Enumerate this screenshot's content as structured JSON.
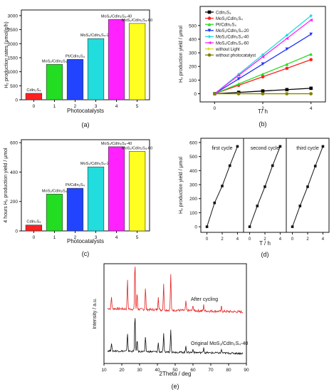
{
  "figure": {
    "panel_labels": [
      "(a)",
      "(b)",
      "(c)",
      "(d)",
      "(e)"
    ]
  },
  "chart_data": [
    {
      "id": "a",
      "type": "bar",
      "xlabel": "Photocatalysts",
      "ylabel": "H₂ production rates (μmol/g/h)",
      "categories": [
        "0",
        "1",
        "2",
        "3",
        "4",
        "5"
      ],
      "values": [
        230,
        1260,
        1440,
        2180,
        2860,
        2720
      ],
      "bar_labels": [
        "CdIn₂S₄",
        "MoS₂/CdIn₂S₄",
        "Pt/CdIn₂S₄",
        "MoS₂/CdIn₂S₄-20",
        "MoS₂/CdIn₂S₄-40",
        "MoS₂/CdIn₂S₄-60"
      ],
      "colors": [
        "#ff2020",
        "#22dd22",
        "#2244ff",
        "#22dddd",
        "#ff22ff",
        "#ffff22"
      ],
      "yticks": [
        0,
        500,
        1000,
        1500,
        2000,
        2500,
        3000
      ],
      "ylim": [
        0,
        3200
      ],
      "xlim": [
        -0.6,
        5.6
      ]
    },
    {
      "id": "b",
      "type": "line",
      "xlabel": "T/ h",
      "ylabel": "H₂ production yield / μmol",
      "xticks": [
        0,
        2,
        4
      ],
      "yticks": [
        0,
        100,
        200,
        300,
        400,
        500
      ],
      "xlim": [
        -0.6,
        4.6
      ],
      "ylim": [
        -60,
        640
      ],
      "x": [
        0,
        1,
        2,
        3,
        4
      ],
      "series": [
        {
          "name": "CdIn₂S₄",
          "color": "#000000",
          "marker": "square",
          "values": [
            0,
            10,
            20,
            30,
            40
          ]
        },
        {
          "name": "MoS₂/CdIn₂S₄",
          "color": "#ff2020",
          "marker": "circle",
          "values": [
            0,
            62,
            124,
            186,
            250
          ]
        },
        {
          "name": "Pt/CdIn₂S₄",
          "color": "#22dd22",
          "marker": "triangle-up",
          "values": [
            0,
            72,
            144,
            216,
            290
          ]
        },
        {
          "name": "MoS₂/CdIn₂S₄-20",
          "color": "#1f33ff",
          "marker": "triangle-down",
          "values": [
            0,
            109,
            218,
            327,
            436
          ]
        },
        {
          "name": "MoS₂/CdIn₂S₄-40",
          "color": "#22dddd",
          "marker": "diamond",
          "values": [
            0,
            143,
            286,
            429,
            572
          ]
        },
        {
          "name": "MoS₂/CdIn₂S₄-60",
          "color": "#ff22ff",
          "marker": "triangle-left",
          "values": [
            0,
            135,
            270,
            405,
            540
          ]
        },
        {
          "name": "without Light",
          "color": "#dddd22",
          "marker": "triangle-right",
          "values": [
            0,
            0,
            0,
            0,
            0
          ]
        },
        {
          "name": "without photocatalyst",
          "color": "#808000",
          "marker": "circle",
          "values": [
            0,
            0,
            0,
            0,
            0
          ]
        }
      ]
    },
    {
      "id": "c",
      "type": "bar",
      "xlabel": "Photocatalysts",
      "ylabel": "4 hours H₂ production yield / μmol",
      "categories": [
        "0",
        "1",
        "2",
        "3",
        "4",
        "5"
      ],
      "values": [
        40,
        250,
        290,
        435,
        572,
        540
      ],
      "bar_labels": [
        "CdIn₂S₄",
        "MoS₂/CdIn₂S₄",
        "Pt/CdIn₂S₄",
        "MoS₂/CdIn₂S₄-20",
        "MoS₂/CdIn₂S₄-40",
        "MoS₂/CdIn₂S₄-60"
      ],
      "colors": [
        "#ff2020",
        "#22dd22",
        "#2244ff",
        "#22dddd",
        "#ff22ff",
        "#ffff22"
      ],
      "yticks": [
        0,
        200,
        400,
        600
      ],
      "ylim": [
        0,
        620
      ],
      "xlim": [
        -0.6,
        5.6
      ]
    },
    {
      "id": "d",
      "type": "line",
      "xlabel": "T / h",
      "ylabel": "H₂ production yield / μmol",
      "yticks": [
        0,
        100,
        200,
        300,
        400,
        500,
        600
      ],
      "ylim": [
        -40,
        630
      ],
      "cycles": [
        {
          "label": "first cycle",
          "x": [
            0,
            1,
            2,
            3,
            4
          ],
          "values": [
            0,
            170,
            290,
            435,
            572
          ],
          "xticks": [
            0,
            2,
            4
          ]
        },
        {
          "label": "second cycle",
          "x": [
            0,
            1,
            2,
            3,
            4
          ],
          "values": [
            0,
            148,
            285,
            435,
            572
          ],
          "xticks": [
            0,
            2,
            4
          ]
        },
        {
          "label": "third cycle",
          "x": [
            0,
            1,
            2,
            3,
            4
          ],
          "values": [
            0,
            148,
            285,
            432,
            572
          ],
          "xticks": [
            0,
            2,
            4
          ]
        }
      ]
    },
    {
      "id": "e",
      "type": "line",
      "xlabel": "2Theta / deg",
      "ylabel": "Intensity / a.u.",
      "xticks": [
        10,
        20,
        30,
        40,
        50,
        60,
        70,
        80,
        90
      ],
      "xlim": [
        10,
        90
      ],
      "series": [
        {
          "name": "After cycling",
          "color": "#e82020",
          "baseline": 0.15,
          "peaks": [
            [
              14.2,
              0.25
            ],
            [
              23.2,
              0.6
            ],
            [
              27.4,
              1.0
            ],
            [
              28.6,
              0.35
            ],
            [
              33.3,
              0.45
            ],
            [
              40.5,
              0.28
            ],
            [
              43.5,
              0.55
            ],
            [
              47.5,
              0.75
            ],
            [
              56,
              0.2
            ],
            [
              60,
              0.12
            ],
            [
              66,
              0.12
            ],
            [
              76,
              0.1
            ]
          ]
        },
        {
          "name": "Original MoS₂/CdIn₂S₄-40",
          "color": "#111111",
          "baseline": 0.15,
          "peaks": [
            [
              14.2,
              0.22
            ],
            [
              23.2,
              0.5
            ],
            [
              27.4,
              1.0
            ],
            [
              28.6,
              0.32
            ],
            [
              33.3,
              0.38
            ],
            [
              40.5,
              0.25
            ],
            [
              43.5,
              0.48
            ],
            [
              47.5,
              0.62
            ],
            [
              56,
              0.18
            ],
            [
              60,
              0.1
            ],
            [
              66,
              0.15
            ],
            [
              76,
              0.1
            ]
          ]
        }
      ]
    }
  ]
}
